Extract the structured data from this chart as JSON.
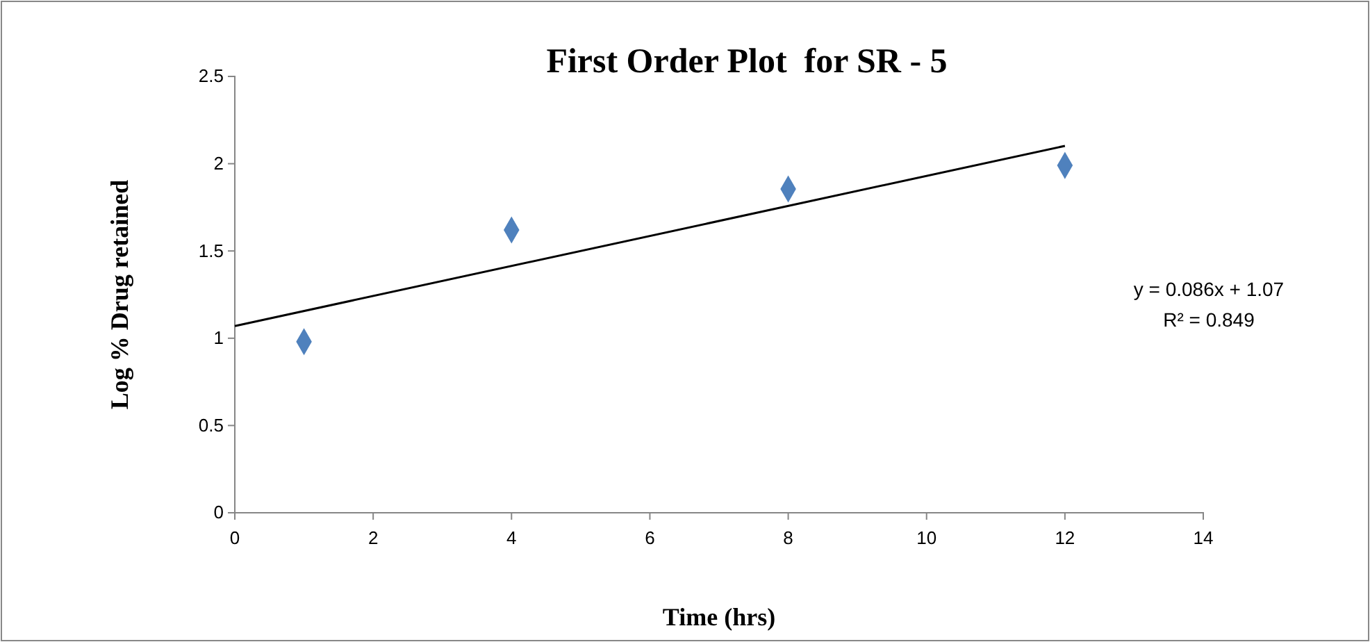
{
  "chart_data": {
    "type": "scatter",
    "title": "First Order Plot  for SR - 5",
    "xlabel": "Time (hrs)",
    "ylabel": "Log % Drug retained",
    "x": [
      1,
      4,
      8,
      12
    ],
    "series": [
      {
        "color": "#4f81bd",
        "marker": "diamond",
        "values": [
          0.98,
          1.62,
          1.855,
          1.99
        ]
      },
      {
        "type": "line",
        "color": "#000000",
        "x": [
          0,
          12
        ],
        "values": [
          1.07,
          2.102
        ]
      }
    ],
    "xlim": [
      0,
      14
    ],
    "xticks": [
      0,
      2,
      4,
      6,
      8,
      10,
      12,
      14
    ],
    "ylim": [
      0,
      2.5
    ],
    "yticks": [
      0,
      0.5,
      1,
      1.5,
      2,
      2.5
    ],
    "grid": false,
    "annotations": [
      "y = 0.086x + 1.07",
      "R² = 0.849"
    ]
  }
}
